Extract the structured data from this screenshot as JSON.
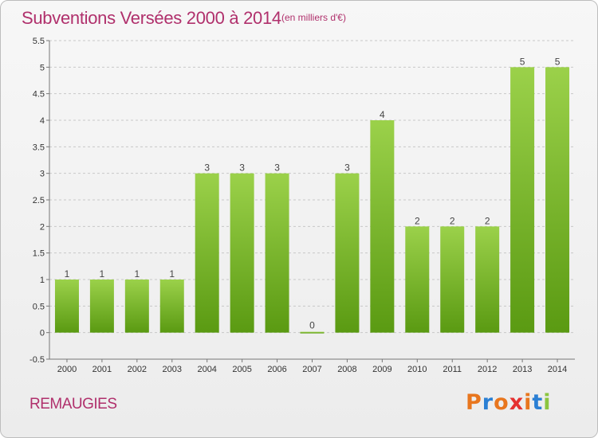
{
  "title": "Subventions Versées 2000 à 2014",
  "subtitle": "(en milliers d'€)",
  "commune": "REMAUGIES",
  "logo": {
    "text": "Proxiti",
    "letter_colors": [
      "#e8761e",
      "#2a7fd4",
      "#e8761e",
      "#e53030",
      "#e8761e",
      "#2a7fd4",
      "#8bc53f"
    ]
  },
  "colors": {
    "title": "#b0306c",
    "bar_top": "#9bd14a",
    "bar_bottom": "#5a9a12",
    "grid": "#c8c8c8"
  },
  "chart_data": {
    "type": "bar",
    "categories": [
      "2000",
      "2001",
      "2002",
      "2003",
      "2004",
      "2005",
      "2006",
      "2007",
      "2008",
      "2009",
      "2010",
      "2011",
      "2012",
      "2013",
      "2014"
    ],
    "values": [
      1,
      1,
      1,
      1,
      3,
      3,
      3,
      0,
      3,
      4,
      2,
      2,
      2,
      5,
      5
    ],
    "data_labels": [
      "1",
      "1",
      "1",
      "1",
      "3",
      "3",
      "3",
      "0",
      "3",
      "4",
      "2",
      "2",
      "2",
      "5",
      "5"
    ],
    "ylim": [
      -0.5,
      5.5
    ],
    "yticks": [
      "-0.5",
      "0",
      "0.5",
      "1",
      "1.5",
      "2",
      "2.5",
      "3",
      "3.5",
      "4",
      "4.5",
      "5",
      "5.5"
    ],
    "grid": true,
    "title": "Subventions Versées 2000 à 2014",
    "xlabel": "",
    "ylabel": ""
  }
}
